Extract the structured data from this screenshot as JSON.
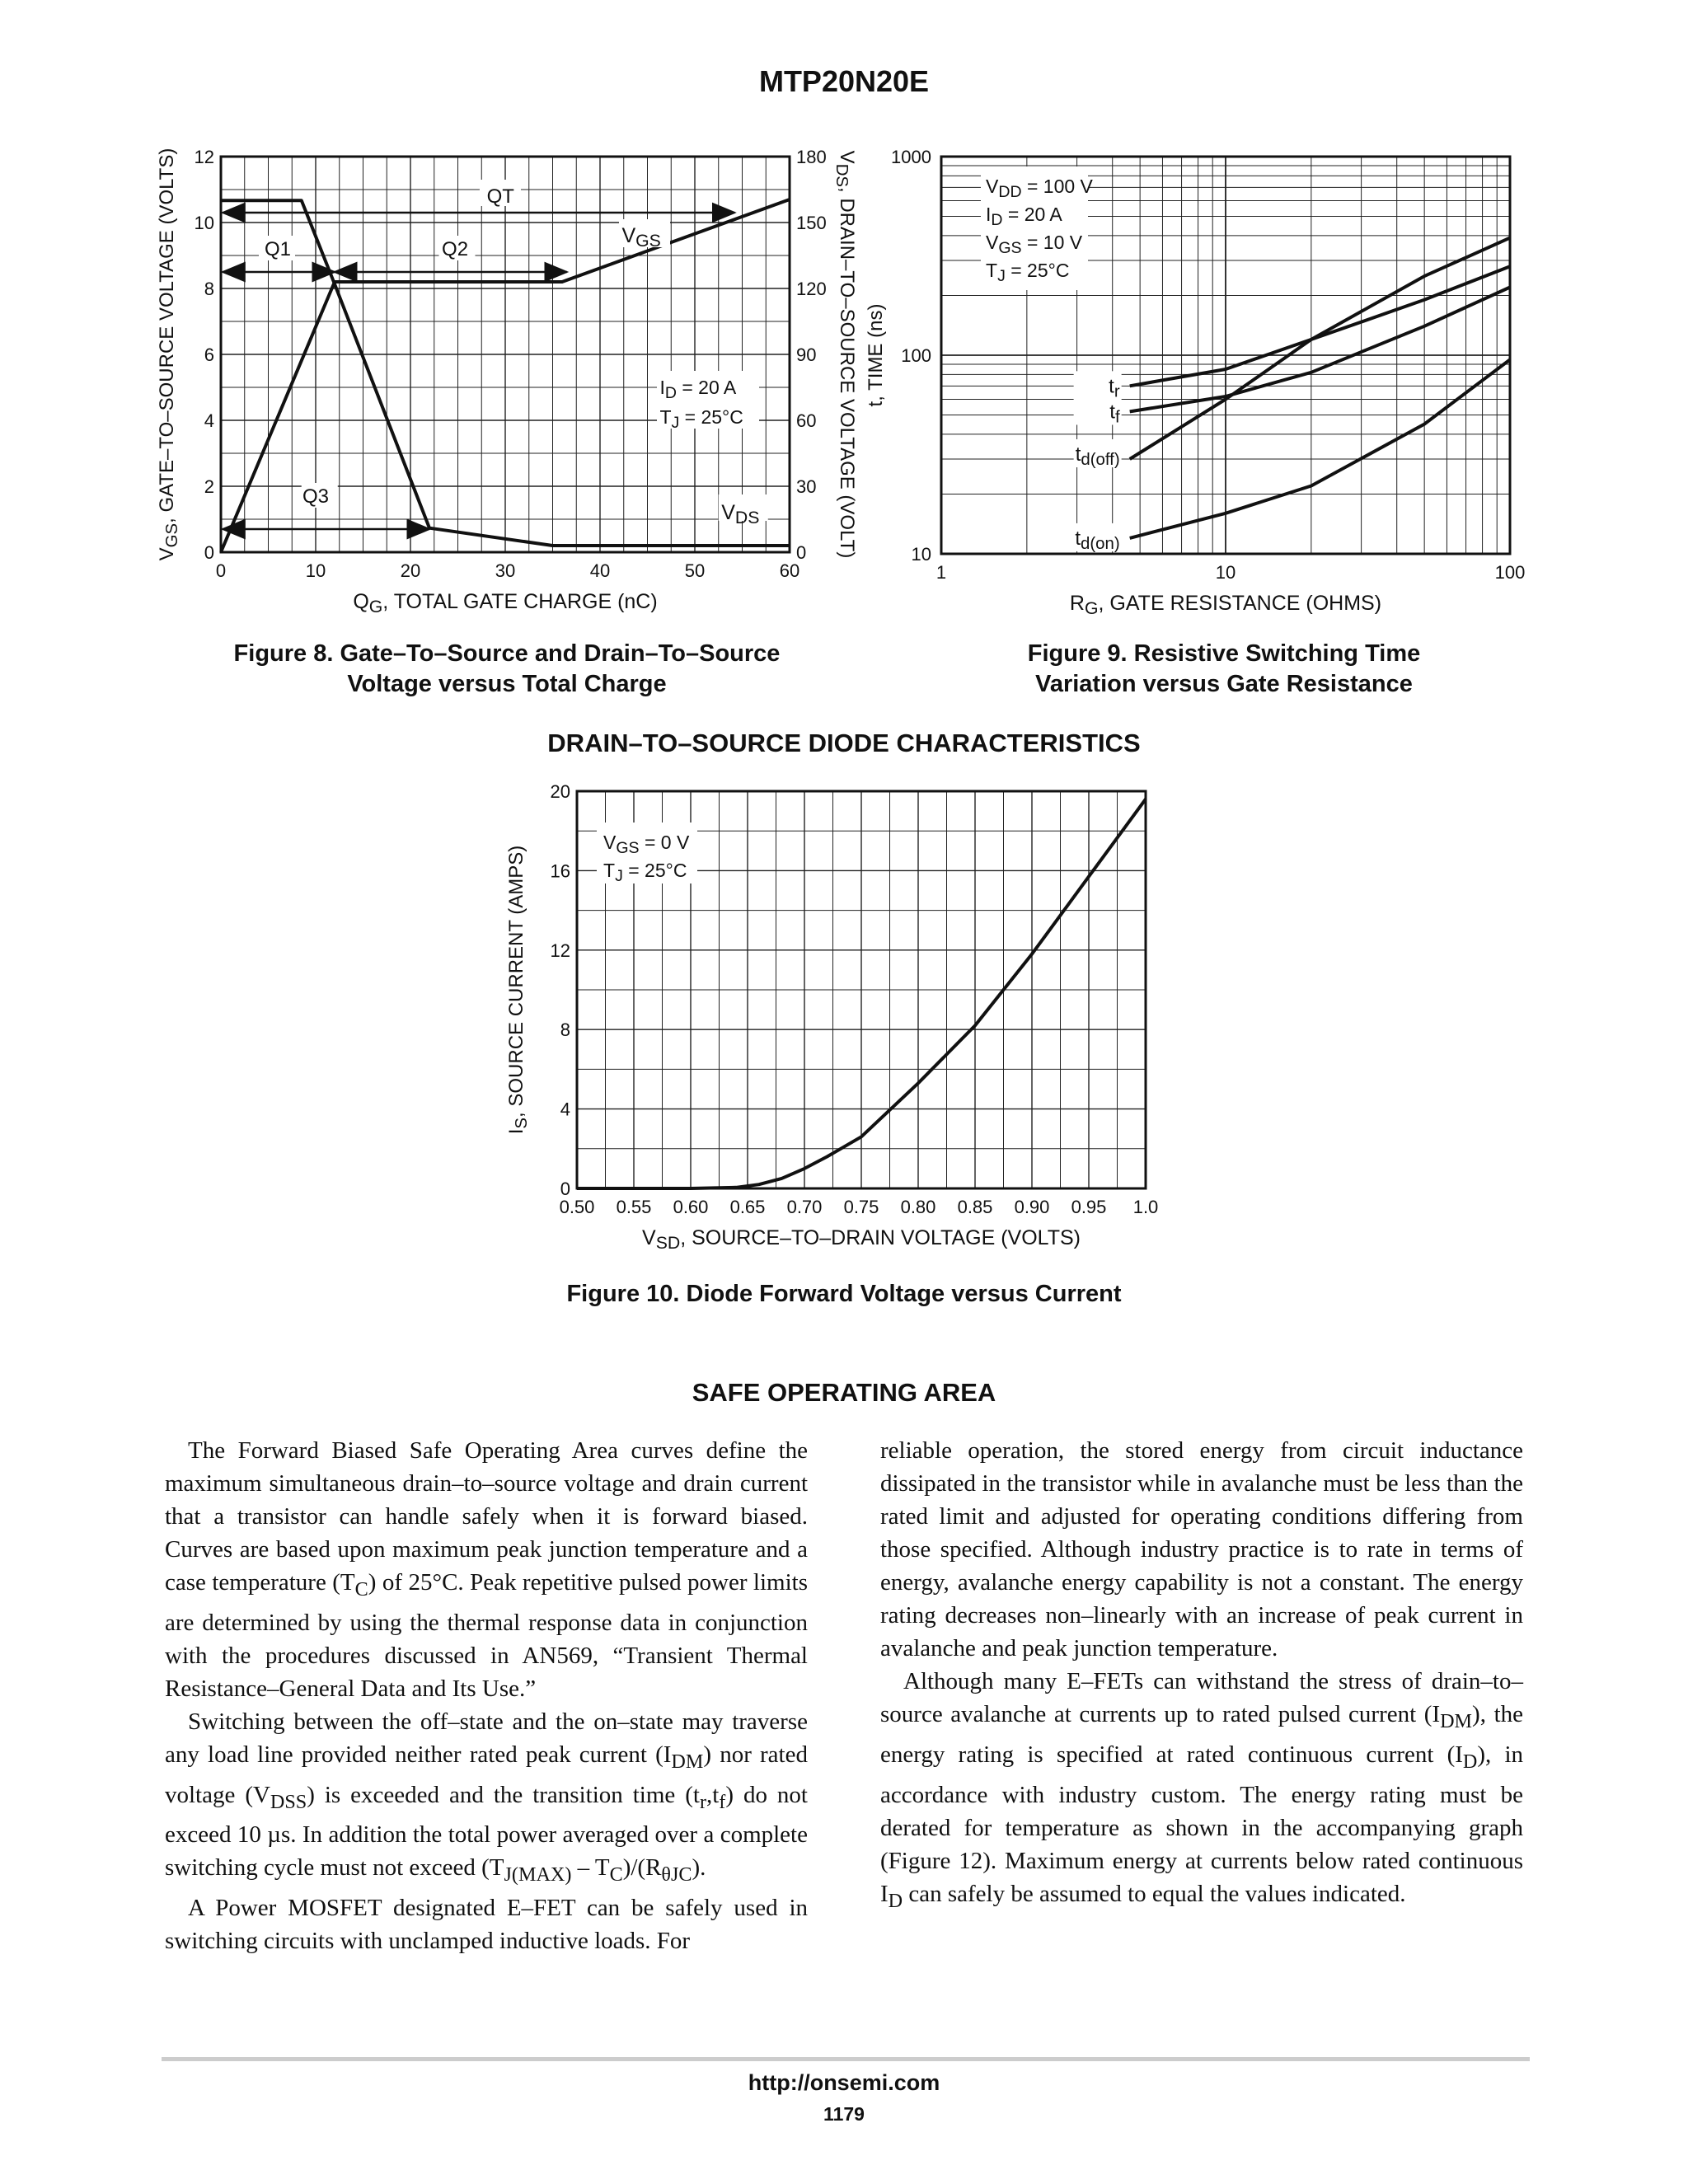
{
  "header": {
    "part_number": "MTP20N20E"
  },
  "fig8": {
    "caption_line1": "Figure 8. Gate–To–Source and Drain–To–Source",
    "caption_line2": "Voltage versus Total Charge",
    "xlabel": "Q_G, TOTAL GATE CHARGE (nC)",
    "ylabel_left": "V_GS, GATE–TO–SOURCE VOLTAGE (VOLTS)",
    "ylabel_right": "V_DS, DRAIN–TO–SOURCE VOLTAGE (VOLT)",
    "x_ticks": [
      "0",
      "10",
      "20",
      "30",
      "40",
      "50",
      "60"
    ],
    "y_left_ticks": [
      "0",
      "2",
      "4",
      "6",
      "8",
      "10",
      "12"
    ],
    "y_right_ticks": [
      "0",
      "30",
      "60",
      "90",
      "120",
      "150",
      "180"
    ],
    "labels": {
      "qt": "QT",
      "q1": "Q1",
      "q2": "Q2",
      "q3": "Q3",
      "vgs": "V_GS",
      "vds": "V_DS",
      "cond1": "I_D = 20 A",
      "cond2": "T_J = 25°C"
    }
  },
  "fig9": {
    "caption_line1": "Figure 9. Resistive Switching Time",
    "caption_line2": "Variation versus Gate Resistance",
    "xlabel": "R_G, GATE RESISTANCE (OHMS)",
    "ylabel": "t, TIME (ns)",
    "x_ticks": [
      "1",
      "10",
      "100"
    ],
    "y_ticks": [
      "10",
      "100",
      "1000"
    ],
    "conditions": [
      "V_DD = 100 V",
      "I_D = 20 A",
      "V_GS = 10 V",
      "T_J = 25°C"
    ],
    "curve_labels": [
      "t_r",
      "t_f",
      "t_d(off)",
      "t_d(on)"
    ]
  },
  "fig10": {
    "section_title": "DRAIN–TO–SOURCE DIODE CHARACTERISTICS",
    "caption": "Figure 10. Diode Forward Voltage versus Current",
    "xlabel": "V_SD, SOURCE–TO–DRAIN VOLTAGE (VOLTS)",
    "ylabel": "I_S, SOURCE CURRENT (AMPS)",
    "x_ticks": [
      "0.50",
      "0.55",
      "0.60",
      "0.65",
      "0.70",
      "0.75",
      "0.80",
      "0.85",
      "0.90",
      "0.95",
      "1.0"
    ],
    "y_ticks": [
      "0",
      "4",
      "8",
      "12",
      "16",
      "20"
    ],
    "conditions": [
      "V_GS = 0 V",
      "T_J = 25°C"
    ]
  },
  "chart_data": [
    {
      "type": "line",
      "title": "Figure 8. Gate–To–Source and Drain–To–Source Voltage versus Total Charge",
      "xlabel": "QG, TOTAL GATE CHARGE (nC)",
      "ylabel": "VGS, GATE–TO–SOURCE VOLTAGE (VOLTS)",
      "y2label": "VDS, DRAIN–TO–SOURCE VOLTAGE (VOLT)",
      "xlim": [
        0,
        60
      ],
      "ylim": [
        0,
        12
      ],
      "y2lim": [
        0,
        180
      ],
      "grid": true,
      "series": [
        {
          "name": "VGS",
          "axis": "left",
          "x": [
            0,
            12,
            36,
            60
          ],
          "y": [
            0,
            8.2,
            8.2,
            10.7
          ]
        },
        {
          "name": "VDS",
          "axis": "right",
          "x": [
            0,
            8.5,
            12,
            22,
            35,
            60
          ],
          "y": [
            160,
            160,
            122,
            11,
            3,
            3
          ]
        }
      ]
    },
    {
      "type": "line",
      "title": "Figure 9. Resistive Switching Time Variation versus Gate Resistance",
      "xlabel": "RG, GATE RESISTANCE (OHMS)",
      "ylabel": "t, TIME (ns)",
      "xscale": "log",
      "yscale": "log",
      "xlim": [
        1,
        100
      ],
      "ylim": [
        10,
        1000
      ],
      "grid": true,
      "series": [
        {
          "name": "tr",
          "x": [
            4.6,
            10,
            20,
            50,
            100
          ],
          "y": [
            70,
            85,
            120,
            190,
            280
          ]
        },
        {
          "name": "tf",
          "x": [
            4.6,
            10,
            20,
            50,
            100
          ],
          "y": [
            52,
            62,
            82,
            140,
            220
          ]
        },
        {
          "name": "td(off)",
          "x": [
            4.6,
            10,
            20,
            50,
            100
          ],
          "y": [
            30,
            60,
            120,
            250,
            390
          ]
        },
        {
          "name": "td(on)",
          "x": [
            4.6,
            10,
            20,
            50,
            100
          ],
          "y": [
            12,
            16,
            22,
            45,
            95
          ]
        }
      ]
    },
    {
      "type": "line",
      "title": "Figure 10. Diode Forward Voltage versus Current",
      "xlabel": "VSD, SOURCE–TO–DRAIN VOLTAGE (VOLTS)",
      "ylabel": "IS, SOURCE CURRENT (AMPS)",
      "xlim": [
        0.5,
        1.0
      ],
      "ylim": [
        0,
        20
      ],
      "grid": true,
      "series": [
        {
          "name": "IS",
          "x": [
            0.5,
            0.6,
            0.64,
            0.66,
            0.68,
            0.7,
            0.72,
            0.75,
            0.8,
            0.85,
            0.9,
            0.95,
            1.0
          ],
          "y": [
            0,
            0,
            0.05,
            0.2,
            0.5,
            1.0,
            1.6,
            2.6,
            5.3,
            8.2,
            11.8,
            15.7,
            19.6
          ]
        }
      ]
    }
  ],
  "section": {
    "title": "SAFE OPERATING AREA"
  },
  "body": {
    "left": [
      "The Forward Biased Safe Operating Area curves define the maximum simultaneous drain–to–source voltage and drain current that a transistor can handle safely when it is forward biased. Curves are based upon maximum peak junction temperature and a case temperature (TC) of 25°C. Peak repetitive pulsed power limits are determined by using the thermal response data in conjunction with the procedures discussed in AN569, “Transient Thermal Resistance–General Data and Its Use.”",
      "Switching between the off–state and the on–state may traverse any load line provided neither rated peak current (IDM) nor rated voltage (VDSS) is exceeded and the transition time (tr,tf) do not exceed 10 µs. In addition the total power averaged over a complete switching cycle must not exceed (TJ(MAX) – TC)/(RθJC).",
      "A Power MOSFET designated E–FET can be safely used in switching circuits with unclamped inductive loads. For"
    ],
    "right": [
      "reliable operation, the stored energy from circuit inductance dissipated in the transistor while in avalanche must be less than the rated limit and adjusted for operating conditions differing from those specified. Although industry practice is to rate in terms of energy, avalanche energy capability is not a constant. The energy rating decreases non–linearly with an increase of peak current in avalanche and peak junction temperature.",
      "Although many E–FETs can withstand the stress of drain–to–source avalanche at currents up to rated pulsed current (IDM), the energy rating is specified at rated continuous current (ID), in accordance with industry custom. The energy rating must be derated for temperature as shown in the accompanying graph (Figure 12). Maximum energy at currents below rated continuous ID can safely be assumed to equal the values indicated."
    ]
  },
  "footer": {
    "url": "http://onsemi.com",
    "page": "1179"
  }
}
